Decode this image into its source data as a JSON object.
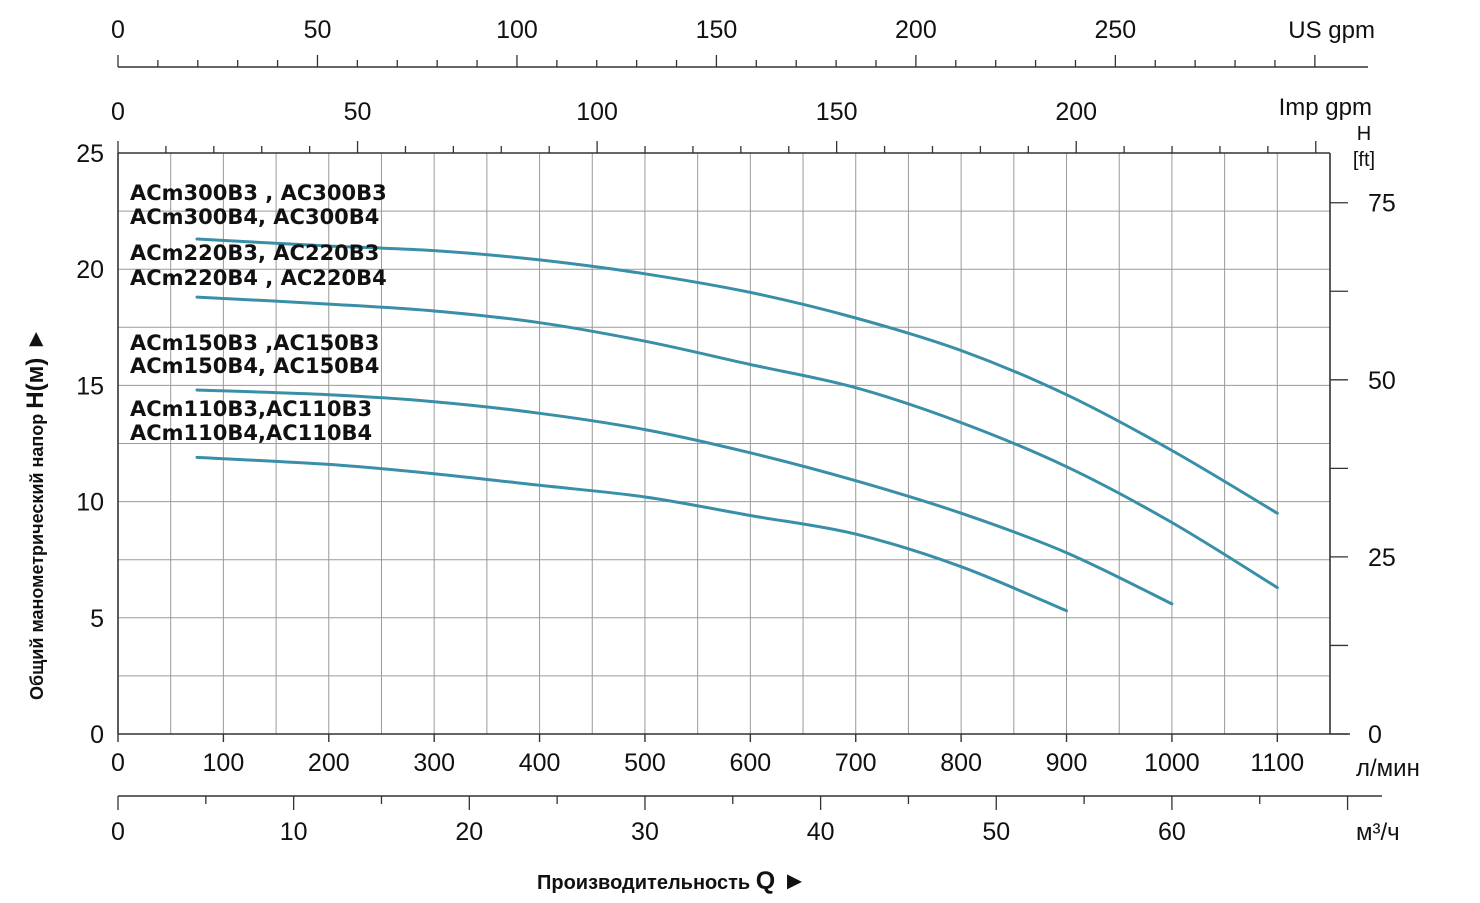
{
  "chart_data": {
    "type": "line",
    "x_unit": "л/мин",
    "x_ticks": [
      0,
      100,
      200,
      300,
      400,
      500,
      600,
      700,
      800,
      900,
      1000,
      1100
    ],
    "xlim": [
      0,
      1150
    ],
    "y_ticks": [
      0,
      5,
      10,
      15,
      20,
      25
    ],
    "ylim": [
      0,
      25
    ],
    "grid": true,
    "ylabel": "Общий манометрический напор",
    "ylabel_symbol": "H(м)",
    "xlabel": "Производительность",
    "xlabel_symbol": "Q",
    "arrow_glyph": "►",
    "secondary_axes": {
      "us_gpm": {
        "label": "US gpm",
        "ticks": [
          0,
          50,
          100,
          150,
          200,
          250
        ]
      },
      "imp_gpm": {
        "label": "Imp gpm",
        "ticks": [
          0,
          50,
          100,
          150,
          200
        ]
      },
      "m3h": {
        "label": "м³/ч",
        "ticks": [
          0,
          10,
          20,
          30,
          40,
          50,
          60
        ]
      },
      "ft": {
        "label_top": "H",
        "label_bottom": "[ft]",
        "ticks": [
          0,
          25,
          50,
          75
        ]
      }
    },
    "series": [
      {
        "name": "ACm300B3 , AC300B3 / ACm300B4, AC300B4",
        "x": [
          75,
          200,
          300,
          400,
          500,
          600,
          700,
          800,
          900,
          1000,
          1100
        ],
        "y": [
          21.3,
          21.0,
          20.8,
          20.4,
          19.8,
          19.0,
          17.9,
          16.5,
          14.6,
          12.2,
          9.5
        ]
      },
      {
        "name": "ACm220B3, AC220B3 / ACm220B4 , AC220B4",
        "x": [
          75,
          200,
          300,
          400,
          500,
          600,
          700,
          800,
          900,
          1000,
          1100
        ],
        "y": [
          18.8,
          18.5,
          18.2,
          17.7,
          16.9,
          15.9,
          14.9,
          13.4,
          11.5,
          9.1,
          6.3
        ]
      },
      {
        "name": "ACm150B3 ,AC150B3 / ACm150B4, AC150B4",
        "x": [
          75,
          200,
          300,
          400,
          500,
          600,
          700,
          800,
          900,
          1000
        ],
        "y": [
          14.8,
          14.6,
          14.3,
          13.8,
          13.1,
          12.1,
          10.9,
          9.5,
          7.8,
          5.6
        ]
      },
      {
        "name": "ACm110B3,AC110B3 / ACm110B4,AC110B4",
        "x": [
          75,
          200,
          300,
          400,
          500,
          600,
          700,
          800,
          900
        ],
        "y": [
          11.9,
          11.6,
          11.2,
          10.7,
          10.2,
          9.4,
          8.6,
          7.2,
          5.3
        ]
      }
    ],
    "legend_labels": [
      {
        "line1": "ACm300B3 , AC300B3",
        "line2": "ACm300B4, AC300B4"
      },
      {
        "line1": "ACm220B3, AC220B3",
        "line2": "ACm220B4 , AC220B4"
      },
      {
        "line1": "ACm150B3 ,AC150B3",
        "line2": "ACm150B4, AC150B4"
      },
      {
        "line1": "ACm110B3,AC110B3",
        "line2": "ACm110B4,AC110B4"
      }
    ],
    "colors": {
      "curve": "#3a8fa8",
      "grid": "#9a9a9a",
      "axis": "#333333"
    }
  }
}
